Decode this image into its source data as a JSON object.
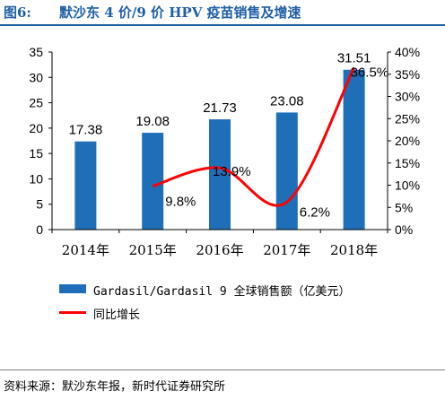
{
  "title": {
    "prefix": "图6:",
    "text": "默沙东 4 价/9 价 HPV 疫苗销售及增速"
  },
  "chart_data": {
    "type": "bar",
    "categories": [
      "2014年",
      "2015年",
      "2016年",
      "2017年",
      "2018年"
    ],
    "series": [
      {
        "name": "Gardasil/Gardasil 9 全球销售额（亿美元）",
        "type": "bar",
        "axis": "left",
        "values": [
          17.38,
          19.08,
          21.73,
          23.08,
          31.51
        ],
        "labels": [
          "17.38",
          "19.08",
          "21.73",
          "23.08",
          "31.51"
        ],
        "color": "#1f6fb8"
      },
      {
        "name": "同比增长",
        "type": "line",
        "axis": "right",
        "smooth": true,
        "values": [
          null,
          9.8,
          13.9,
          6.2,
          36.5
        ],
        "labels": [
          "",
          "9.8%",
          "13.9%",
          "6.2%",
          "36.5%"
        ],
        "color": "#ff0000"
      }
    ],
    "y_left": {
      "min": 0,
      "max": 35,
      "ticks": [
        "0",
        "5",
        "10",
        "15",
        "20",
        "25",
        "30",
        "35"
      ]
    },
    "y_right": {
      "min": 0,
      "max": 40,
      "ticks": [
        "0%",
        "5%",
        "10%",
        "15%",
        "20%",
        "25%",
        "30%",
        "35%",
        "40%"
      ]
    },
    "grid": false,
    "legend_position": "bottom"
  },
  "source": "资料来源：默沙东年报，新时代证券研究所"
}
